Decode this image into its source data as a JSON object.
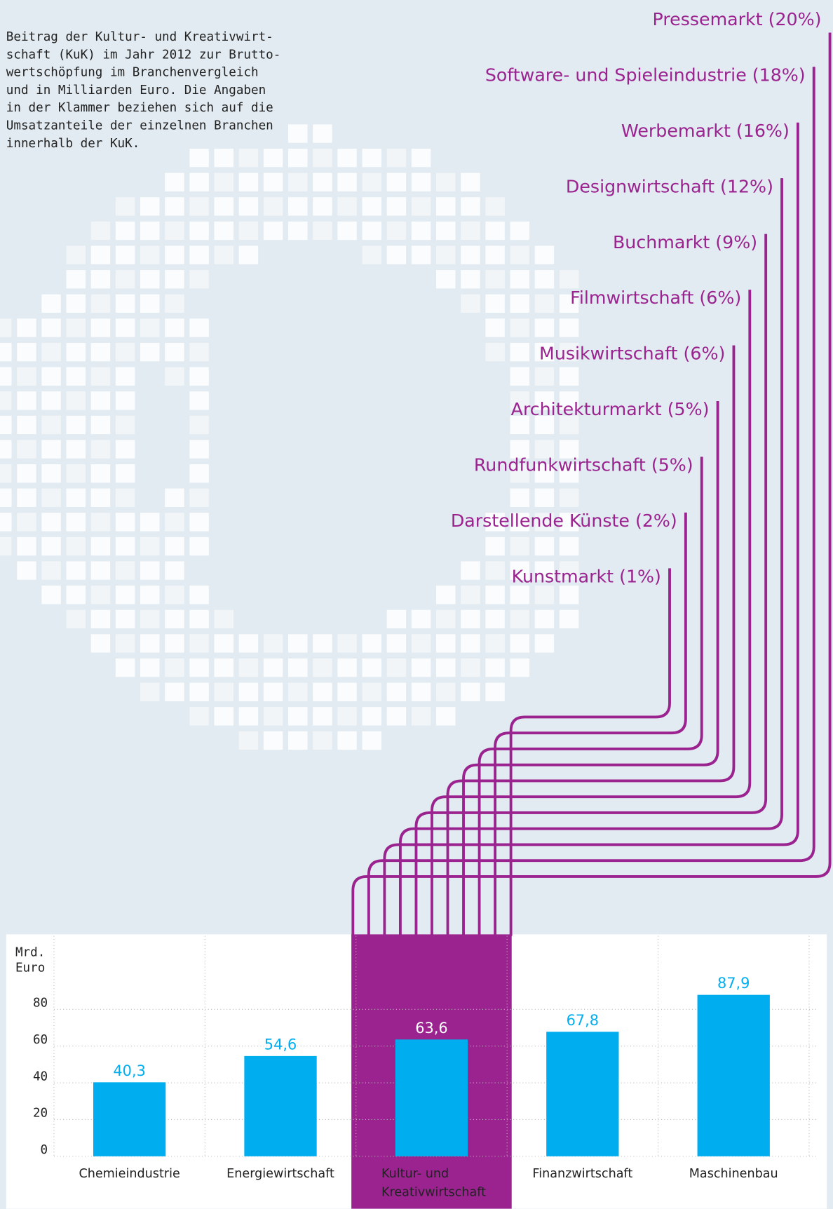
{
  "chart_data": {
    "type": "bar",
    "intro": [
      "Beitrag der Kultur- und Kreativwirt-",
      "schaft (KuK) im Jahr 2012 zur Brutto-",
      "wertschöpfung im Branchenvergleich",
      "und in Milliarden Euro. Die Angaben",
      "in der Klammer beziehen sich auf die",
      "Umsatzanteile der einzelnen Branchen",
      "innerhalb der KuK."
    ],
    "breakdown": [
      "Pressemarkt (20%)",
      "Software- und Spieleindustrie (18%)",
      "Werbemarkt (16%)",
      "Designwirtschaft (12%)",
      "Buchmarkt (9%)",
      "Filmwirtschaft (6%)",
      "Musikwirtschaft (6%)",
      "Architekturmarkt (5%)",
      "Rundfunkwirtschaft (5%)",
      "Darstellende Künste (2%)",
      "Kunstmarkt (1%)"
    ],
    "y_label": [
      "Mrd.",
      "Euro"
    ],
    "categories": [
      "Chemieindustrie",
      "Energiewirtschaft",
      "Kultur- und Kreativwirtschaft",
      "Finanzwirtschaft",
      "Maschinenbau"
    ],
    "values": [
      40.3,
      54.6,
      63.6,
      67.8,
      87.9
    ],
    "value_labels": [
      "40,3",
      "54,6",
      "63,6",
      "67,8",
      "87,9"
    ],
    "color": "#00aeef",
    "highlight_index": 2,
    "highlight_color": "#9b2390",
    "ylim": [
      0,
      120
    ],
    "yticks": [
      0,
      20,
      40,
      60,
      80
    ],
    "grid": true
  }
}
